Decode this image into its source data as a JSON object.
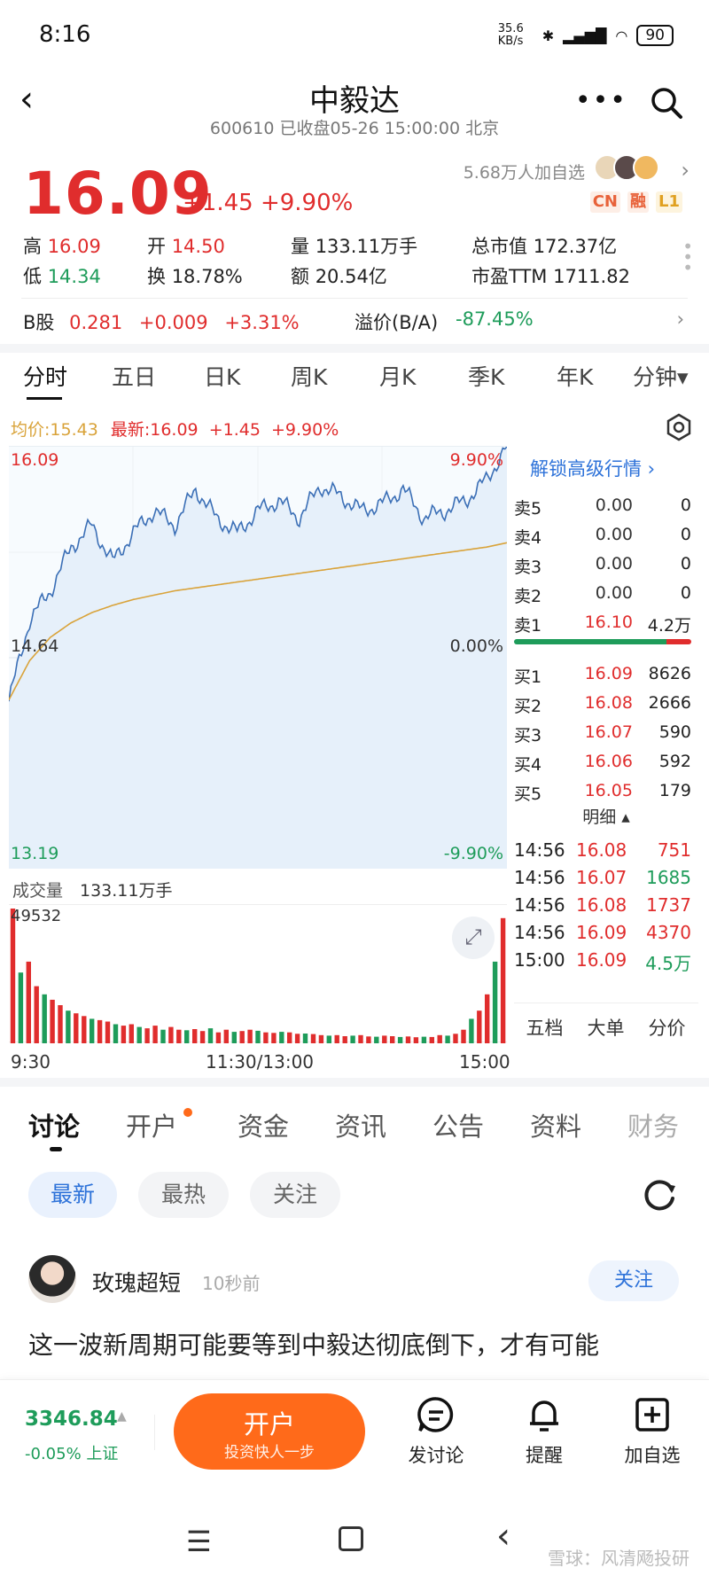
{
  "status": {
    "time": "8:16",
    "net_speed": "35.6 KB/s",
    "battery": "90"
  },
  "header": {
    "title": "中毅达",
    "subtitle": "600610 已收盘05-26 15:00:00 北京"
  },
  "quote": {
    "price": "16.09",
    "change": "+1.45 +9.90%",
    "followers": "5.68万人加自选",
    "tags": [
      "CN",
      "融",
      "L1"
    ],
    "stats": {
      "high_label": "高",
      "high": "16.09",
      "open_label": "开",
      "open": "14.50",
      "volume_label": "量",
      "volume": "133.11万手",
      "mcap_label": "总市值",
      "mcap": "172.37亿",
      "low_label": "低",
      "low": "14.34",
      "turnover_label": "换",
      "turnover": "18.78%",
      "amount_label": "额",
      "amount": "20.54亿",
      "pe_label": "市盈TTM",
      "pe": "1711.82"
    },
    "bshare": {
      "label": "B股",
      "price": "0.281",
      "chg": "+0.009",
      "pct": "+3.31%",
      "premium_label": "溢价(B/A)",
      "premium": "-87.45%"
    }
  },
  "chart_tabs": [
    "分时",
    "五日",
    "日K",
    "周K",
    "月K",
    "季K",
    "年K",
    "分钟▾"
  ],
  "chart_header": {
    "avg": "均价:15.43",
    "latest": "最新:16.09",
    "chg": "+1.45",
    "pct": "+9.90%"
  },
  "chart_data": {
    "type": "line",
    "y_labels": {
      "top": "16.09",
      "mid": "14.64",
      "bottom": "13.19",
      "top_pct": "9.90%",
      "mid_pct": "0.00%",
      "bottom_pct": "-9.90%"
    },
    "ylim": [
      13.19,
      16.09
    ],
    "series": [
      {
        "name": "均价",
        "values": [
          14.35,
          14.62,
          14.78,
          14.88,
          14.95,
          15.0,
          15.04,
          15.07,
          15.1,
          15.12,
          15.14,
          15.16,
          15.18,
          15.2,
          15.22,
          15.24,
          15.26,
          15.28,
          15.3,
          15.32,
          15.34,
          15.36,
          15.38,
          15.4,
          15.43
        ]
      },
      {
        "name": "最新",
        "values": [
          14.34,
          14.9,
          15.1,
          15.4,
          15.55,
          15.3,
          15.5,
          15.65,
          15.55,
          15.8,
          15.6,
          15.5,
          15.65,
          15.72,
          15.6,
          15.82,
          15.75,
          15.65,
          15.7,
          15.8,
          15.6,
          15.65,
          15.72,
          15.86,
          16.09
        ]
      }
    ],
    "volume": {
      "label": "成交量",
      "total": "133.11万手",
      "max": "49532",
      "values": [
        49532,
        26000,
        30000,
        21000,
        18000,
        16000,
        14000,
        12000,
        11000,
        10000,
        9000,
        8500,
        8000,
        7000,
        6500,
        7000,
        6000,
        5500,
        6500,
        5000,
        6000,
        5000,
        4800,
        5200,
        4500,
        5500,
        4000,
        5000,
        4200,
        4500,
        5000,
        4600,
        4000,
        3800,
        4200,
        4000,
        3500,
        3600,
        3400,
        3000,
        2800,
        3000,
        2600,
        2800,
        3000,
        2500,
        2400,
        2800,
        2600,
        2300,
        2500,
        2200,
        2400,
        2300,
        3000,
        2800,
        3500,
        5000,
        9000,
        12000,
        18000,
        30000,
        46000
      ]
    },
    "x_labels": [
      "9:30",
      "11:30/13:00",
      "15:00"
    ]
  },
  "orderbook": {
    "unlock": "解锁高级行情",
    "asks": [
      {
        "label": "卖5",
        "price": "0.00",
        "vol": "0"
      },
      {
        "label": "卖4",
        "price": "0.00",
        "vol": "0"
      },
      {
        "label": "卖3",
        "price": "0.00",
        "vol": "0"
      },
      {
        "label": "卖2",
        "price": "0.00",
        "vol": "0"
      },
      {
        "label": "卖1",
        "price": "16.10",
        "vol": "4.2万"
      }
    ],
    "bids": [
      {
        "label": "买1",
        "price": "16.09",
        "vol": "8626"
      },
      {
        "label": "买2",
        "price": "16.08",
        "vol": "2666"
      },
      {
        "label": "买3",
        "price": "16.07",
        "vol": "590"
      },
      {
        "label": "买4",
        "price": "16.06",
        "vol": "592"
      },
      {
        "label": "买5",
        "price": "16.05",
        "vol": "179"
      }
    ],
    "detail_label": "明细 ▴",
    "ticks": [
      {
        "time": "14:56",
        "price": "16.08",
        "vol": "751",
        "vcolor": "#e02d2d"
      },
      {
        "time": "14:56",
        "price": "16.07",
        "vol": "1685",
        "vcolor": "#1e9c5a"
      },
      {
        "time": "14:56",
        "price": "16.08",
        "vol": "1737",
        "vcolor": "#e02d2d"
      },
      {
        "time": "14:56",
        "price": "16.09",
        "vol": "4370",
        "vcolor": "#e02d2d"
      },
      {
        "time": "15:00",
        "price": "16.09",
        "vol": "4.5万",
        "vcolor": "#1e9c5a"
      }
    ],
    "footer": [
      "五档",
      "大单",
      "分价"
    ]
  },
  "discussion": {
    "tabs": [
      "讨论",
      "开户",
      "资金",
      "资讯",
      "公告",
      "资料",
      "财务"
    ],
    "filters": [
      "最新",
      "最热",
      "关注"
    ],
    "post": {
      "user": "玫瑰超短",
      "time": "10秒前",
      "follow": "关注",
      "text": "这一波新周期可能要等到中毅达彻底倒下，才有可能"
    }
  },
  "bottombar": {
    "index_value": "3346.84",
    "index_change": "-0.05% 上证",
    "open_main": "开户",
    "open_sub": "投资快人一步",
    "nav": [
      "发讨论",
      "提醒",
      "加自选"
    ]
  },
  "watermark": "雪球：风清飏投研",
  "colors": {
    "up": "#e02d2d",
    "down": "#1e9c5a",
    "accent": "#2d72d9",
    "orange": "#ff6a1a",
    "avg_line": "#d9a33a",
    "price_line": "#3b6fb6"
  }
}
